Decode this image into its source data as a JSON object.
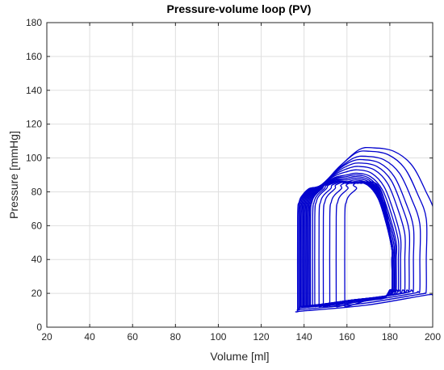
{
  "chart_data": {
    "type": "line",
    "title": "Pressure-volume loop (PV)",
    "xlabel": "Volume [ml]",
    "ylabel": "Pressure [mmHg]",
    "xlim": [
      20,
      200
    ],
    "ylim": [
      0,
      180
    ],
    "xticks": [
      20,
      40,
      60,
      80,
      100,
      120,
      140,
      160,
      180,
      200
    ],
    "yticks": [
      0,
      20,
      40,
      60,
      80,
      100,
      120,
      140,
      160,
      180
    ],
    "xtick_labels": [
      "20",
      "40",
      "60",
      "80",
      "100",
      "120",
      "140",
      "160",
      "180",
      "200"
    ],
    "ytick_labels": [
      "0",
      "20",
      "40",
      "60",
      "80",
      "100",
      "120",
      "140",
      "160",
      "180"
    ],
    "grid": true,
    "legend": "none",
    "line_color": "#0000cd",
    "loop_template_x": [
      0,
      1,
      3,
      12,
      30,
      45,
      70,
      90,
      100,
      100,
      99,
      100,
      100
    ],
    "loop_template_y": [
      0,
      60,
      75,
      88,
      96,
      100,
      96,
      80,
      60,
      20,
      10,
      8,
      6
    ],
    "series": [
      {
        "esv": 137,
        "edv": 201,
        "min_pressure": 9,
        "peak_pressure": 106,
        "base_pressure": 86
      },
      {
        "esv": 137.5,
        "edv": 197,
        "min_pressure": 10,
        "peak_pressure": 104,
        "base_pressure": 86
      },
      {
        "esv": 138,
        "edv": 194,
        "min_pressure": 11,
        "peak_pressure": 101,
        "base_pressure": 86
      },
      {
        "esv": 138.5,
        "edv": 191,
        "min_pressure": 12,
        "peak_pressure": 99,
        "base_pressure": 86
      },
      {
        "esv": 139,
        "edv": 189,
        "min_pressure": 12,
        "peak_pressure": 97,
        "base_pressure": 86
      },
      {
        "esv": 139.5,
        "edv": 187,
        "min_pressure": 12,
        "peak_pressure": 95,
        "base_pressure": 86
      },
      {
        "esv": 140,
        "edv": 185,
        "min_pressure": 12,
        "peak_pressure": 93,
        "base_pressure": 86
      },
      {
        "esv": 140.5,
        "edv": 184,
        "min_pressure": 12,
        "peak_pressure": 91,
        "base_pressure": 86
      },
      {
        "esv": 141,
        "edv": 183,
        "min_pressure": 12,
        "peak_pressure": 90,
        "base_pressure": 86
      },
      {
        "esv": 141.5,
        "edv": 182.5,
        "min_pressure": 12,
        "peak_pressure": 89,
        "base_pressure": 86
      },
      {
        "esv": 142,
        "edv": 182,
        "min_pressure": 12,
        "peak_pressure": 88,
        "base_pressure": 86
      },
      {
        "esv": 142.5,
        "edv": 181.5,
        "min_pressure": 12,
        "peak_pressure": 87,
        "base_pressure": 86
      },
      {
        "esv": 143,
        "edv": 181,
        "min_pressure": 12,
        "peak_pressure": 86,
        "base_pressure": 86
      },
      {
        "esv": 144,
        "edv": 181,
        "min_pressure": 12,
        "peak_pressure": 86,
        "base_pressure": 86
      },
      {
        "esv": 145,
        "edv": 181,
        "min_pressure": 12,
        "peak_pressure": 86,
        "base_pressure": 86
      },
      {
        "esv": 147,
        "edv": 181,
        "min_pressure": 12,
        "peak_pressure": 86,
        "base_pressure": 86
      },
      {
        "esv": 149,
        "edv": 181,
        "min_pressure": 12,
        "peak_pressure": 86,
        "base_pressure": 86
      },
      {
        "esv": 152,
        "edv": 181,
        "min_pressure": 12,
        "peak_pressure": 86,
        "base_pressure": 86
      },
      {
        "esv": 155,
        "edv": 181,
        "min_pressure": 12,
        "peak_pressure": 86,
        "base_pressure": 86
      },
      {
        "esv": 159,
        "edv": 181,
        "min_pressure": 12,
        "peak_pressure": 86,
        "base_pressure": 86
      }
    ]
  }
}
